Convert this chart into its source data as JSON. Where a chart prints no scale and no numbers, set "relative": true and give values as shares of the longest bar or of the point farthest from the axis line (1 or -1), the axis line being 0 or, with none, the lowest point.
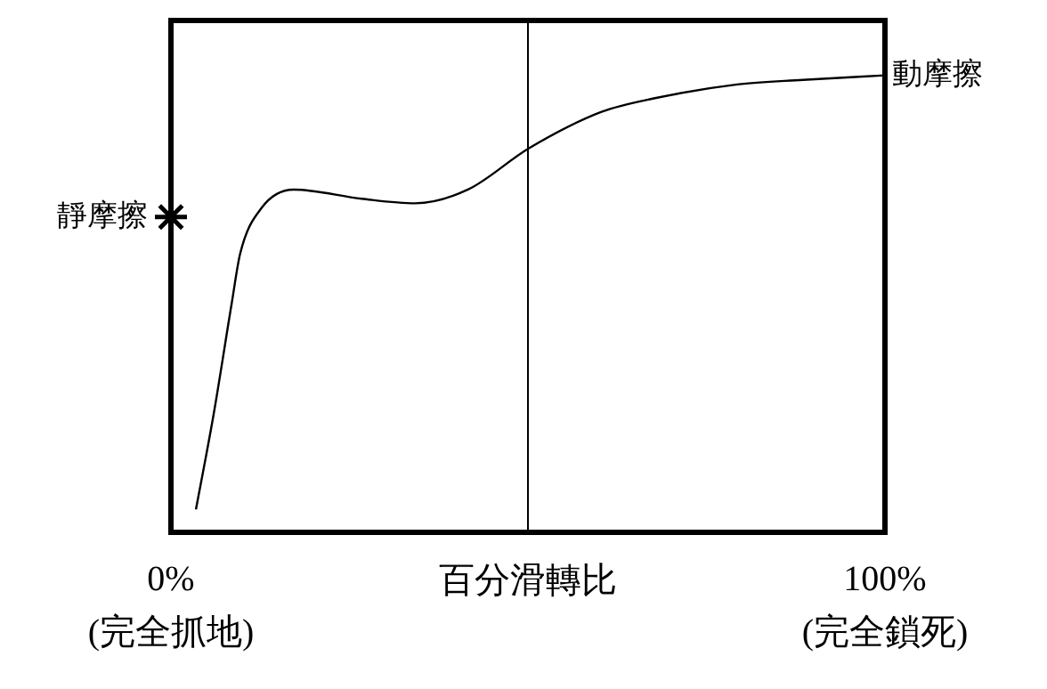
{
  "chart_data": {
    "type": "line",
    "xlabel": "百分滑轉比",
    "relative": true,
    "xlim": [
      0,
      100
    ],
    "xticks": [
      {
        "value": 0,
        "label": "0%\n(完全抓地)"
      },
      {
        "value": 100,
        "label": "100%\n(完全鎖死)"
      }
    ],
    "series": [
      {
        "type": "line",
        "color": "#000000",
        "x": [
          3.5,
          6.0,
          8.5,
          9.7,
          12.7,
          17.2,
          26.7,
          34.2,
          41.6,
          50.1,
          60.3,
          67.8,
          79.3,
          88.5,
          100
        ],
        "values": [
          0.05,
          0.26,
          0.5,
          0.61,
          0.71,
          0.75,
          0.73,
          0.72,
          0.75,
          0.84,
          0.92,
          0.95,
          0.98,
          0.99,
          1
        ]
      },
      {
        "type": "scatter",
        "name": "靜摩擦",
        "color": "#000000",
        "marker": "cross",
        "x": [
          0
        ],
        "values": [
          0.69
        ]
      }
    ],
    "ref_lines": [
      {
        "axis": "x",
        "value": 50,
        "color": "#000000"
      }
    ],
    "annotations": [
      {
        "text": "動摩擦",
        "x": 100,
        "y": 1
      }
    ]
  }
}
